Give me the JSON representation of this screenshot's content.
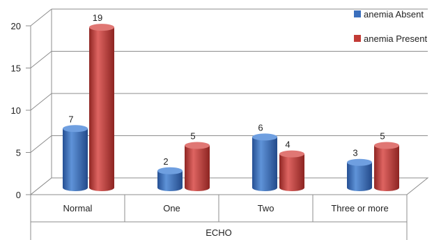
{
  "chart_data": {
    "type": "bar",
    "style": "3d-cylinder",
    "categories": [
      "Normal",
      "One",
      "Two",
      "Three or more"
    ],
    "series": [
      {
        "name": "anemia Absent",
        "values": [
          7,
          2,
          6,
          3
        ],
        "color": "#3a6fbd"
      },
      {
        "name": "anemia Present",
        "values": [
          19,
          5,
          4,
          5
        ],
        "color": "#c23b36"
      }
    ],
    "xlabel": "ECHO",
    "ylabel": "",
    "ylim": [
      0,
      20
    ],
    "yticks": [
      0,
      5,
      10,
      15,
      20
    ],
    "grid": true,
    "legend": "top-right",
    "data_labels": true
  }
}
